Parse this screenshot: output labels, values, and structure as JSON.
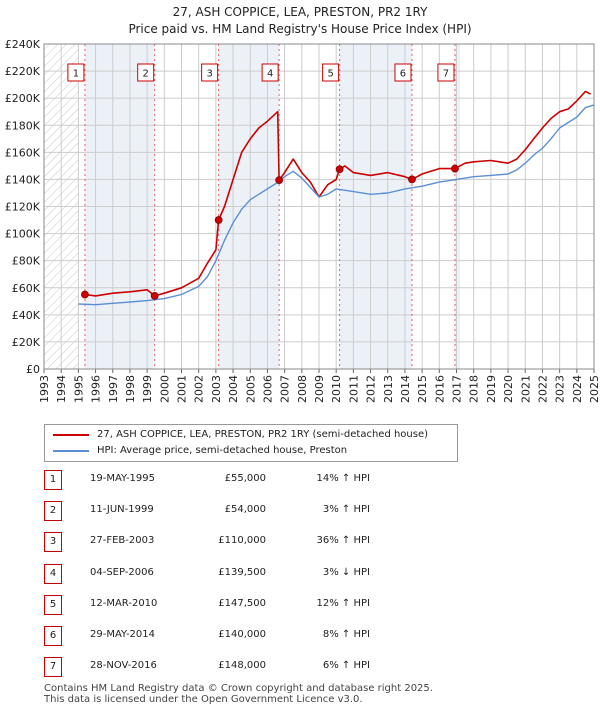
{
  "title_line1": "27, ASH COPPICE, LEA, PRESTON, PR2 1RY",
  "title_line2": "Price paid vs. HM Land Registry's House Price Index (HPI)",
  "chart_data": {
    "type": "line",
    "ylim": [
      0,
      240000
    ],
    "xlim": [
      1993.0,
      2025.0
    ],
    "y_ticks": [
      0,
      20000,
      40000,
      60000,
      80000,
      100000,
      120000,
      140000,
      160000,
      180000,
      200000,
      220000,
      240000
    ],
    "y_tick_labels": [
      "£0",
      "£20K",
      "£40K",
      "£60K",
      "£80K",
      "£100K",
      "£120K",
      "£140K",
      "£160K",
      "£180K",
      "£200K",
      "£220K",
      "£240K"
    ],
    "x_ticks": [
      1993,
      1994,
      1995,
      1996,
      1997,
      1998,
      1999,
      2000,
      2001,
      2002,
      2003,
      2004,
      2005,
      2006,
      2007,
      2008,
      2009,
      2010,
      2011,
      2012,
      2013,
      2014,
      2015,
      2016,
      2017,
      2018,
      2019,
      2020,
      2021,
      2022,
      2023,
      2024,
      2025
    ],
    "x_tick_labels": [
      "1993",
      "1994",
      "1995",
      "1996",
      "1997",
      "1998",
      "1999",
      "2000",
      "2001",
      "2002",
      "2003",
      "2004",
      "2005",
      "2006",
      "2007",
      "2008",
      "2009",
      "2010",
      "2011",
      "2012",
      "2013",
      "2014",
      "2015",
      "2016",
      "2017",
      "2018",
      "2019",
      "2020",
      "2021",
      "2022",
      "2023",
      "2024",
      "2025"
    ],
    "hatch_end_year": 1995.0,
    "colors": {
      "property": "#cc0000",
      "hpi": "#5b8fd4",
      "band": "#dde6f3",
      "grid": "#cccccc"
    },
    "series": [
      {
        "name": "27, ASH COPPICE, LEA, PRESTON, PR2 1RY (semi-detached house)",
        "key": "property",
        "x": [
          1995.38,
          1996.0,
          1997.0,
          1998.0,
          1999.0,
          1999.44,
          2000.0,
          2001.0,
          2002.0,
          2002.5,
          2003.0,
          2003.16,
          2003.5,
          2004.0,
          2004.5,
          2005.0,
          2005.5,
          2006.0,
          2006.6,
          2006.68,
          2007.0,
          2007.5,
          2008.0,
          2008.5,
          2009.0,
          2009.5,
          2010.0,
          2010.2,
          2010.5,
          2011.0,
          2012.0,
          2013.0,
          2014.0,
          2014.41,
          2015.0,
          2016.0,
          2016.91,
          2017.5,
          2018.0,
          2019.0,
          2020.0,
          2020.5,
          2021.0,
          2021.5,
          2022.0,
          2022.5,
          2023.0,
          2023.5,
          2024.0,
          2024.5,
          2024.8
        ],
        "y": [
          55000,
          54000,
          56000,
          57000,
          58500,
          54000,
          56000,
          60000,
          67000,
          78000,
          88000,
          110000,
          120000,
          140000,
          160000,
          170000,
          178000,
          183000,
          190000,
          139500,
          145000,
          155000,
          145000,
          138000,
          127000,
          136000,
          140000,
          147500,
          150000,
          145000,
          143000,
          145000,
          142000,
          140000,
          144000,
          148000,
          148000,
          152000,
          153000,
          154000,
          152000,
          155000,
          162000,
          170000,
          178000,
          185000,
          190000,
          192000,
          198000,
          205000,
          203000
        ]
      },
      {
        "name": "HPI: Average price, semi-detached house, Preston",
        "key": "hpi",
        "x": [
          1995.0,
          1996.0,
          1997.0,
          1998.0,
          1999.0,
          2000.0,
          2001.0,
          2002.0,
          2002.5,
          2003.0,
          2003.5,
          2004.0,
          2004.5,
          2005.0,
          2005.5,
          2006.0,
          2006.5,
          2007.0,
          2007.5,
          2008.0,
          2008.5,
          2009.0,
          2009.5,
          2010.0,
          2011.0,
          2012.0,
          2013.0,
          2014.0,
          2015.0,
          2016.0,
          2017.0,
          2018.0,
          2019.0,
          2020.0,
          2020.5,
          2021.0,
          2021.5,
          2022.0,
          2022.5,
          2023.0,
          2023.5,
          2024.0,
          2024.5,
          2025.0
        ],
        "y": [
          48000,
          47500,
          48500,
          49500,
          50500,
          52000,
          55000,
          61000,
          68000,
          80000,
          95000,
          108000,
          118000,
          125000,
          129000,
          133000,
          137000,
          142000,
          146000,
          141000,
          134000,
          127000,
          129000,
          133000,
          131000,
          129000,
          130000,
          133000,
          135000,
          138000,
          140000,
          142000,
          143000,
          144000,
          147000,
          152000,
          158000,
          163000,
          170000,
          178000,
          182000,
          186000,
          193000,
          195000
        ]
      }
    ],
    "sales": [
      {
        "n": "1",
        "year": 1995.38,
        "price": 55000
      },
      {
        "n": "2",
        "year": 1999.44,
        "price": 54000
      },
      {
        "n": "3",
        "year": 2003.16,
        "price": 110000
      },
      {
        "n": "4",
        "year": 2006.68,
        "price": 139500
      },
      {
        "n": "5",
        "year": 2010.2,
        "price": 147500
      },
      {
        "n": "6",
        "year": 2014.41,
        "price": 140000
      },
      {
        "n": "7",
        "year": 2016.91,
        "price": 148000
      }
    ]
  },
  "legend": {
    "property_label": "27, ASH COPPICE, LEA, PRESTON, PR2 1RY (semi-detached house)",
    "hpi_label": "HPI: Average price, semi-detached house, Preston"
  },
  "table": [
    {
      "n": "1",
      "date": "19-MAY-1995",
      "price": "£55,000",
      "hpi": "14% ↑ HPI"
    },
    {
      "n": "2",
      "date": "11-JUN-1999",
      "price": "£54,000",
      "hpi": "3% ↑ HPI"
    },
    {
      "n": "3",
      "date": "27-FEB-2003",
      "price": "£110,000",
      "hpi": "36% ↑ HPI"
    },
    {
      "n": "4",
      "date": "04-SEP-2006",
      "price": "£139,500",
      "hpi": "3% ↓ HPI"
    },
    {
      "n": "5",
      "date": "12-MAR-2010",
      "price": "£147,500",
      "hpi": "12% ↑ HPI"
    },
    {
      "n": "6",
      "date": "29-MAY-2014",
      "price": "£140,000",
      "hpi": "8% ↑ HPI"
    },
    {
      "n": "7",
      "date": "28-NOV-2016",
      "price": "£148,000",
      "hpi": "6% ↑ HPI"
    }
  ],
  "footer_line1": "Contains HM Land Registry data © Crown copyright and database right 2025.",
  "footer_line2": "This data is licensed under the Open Government Licence v3.0."
}
